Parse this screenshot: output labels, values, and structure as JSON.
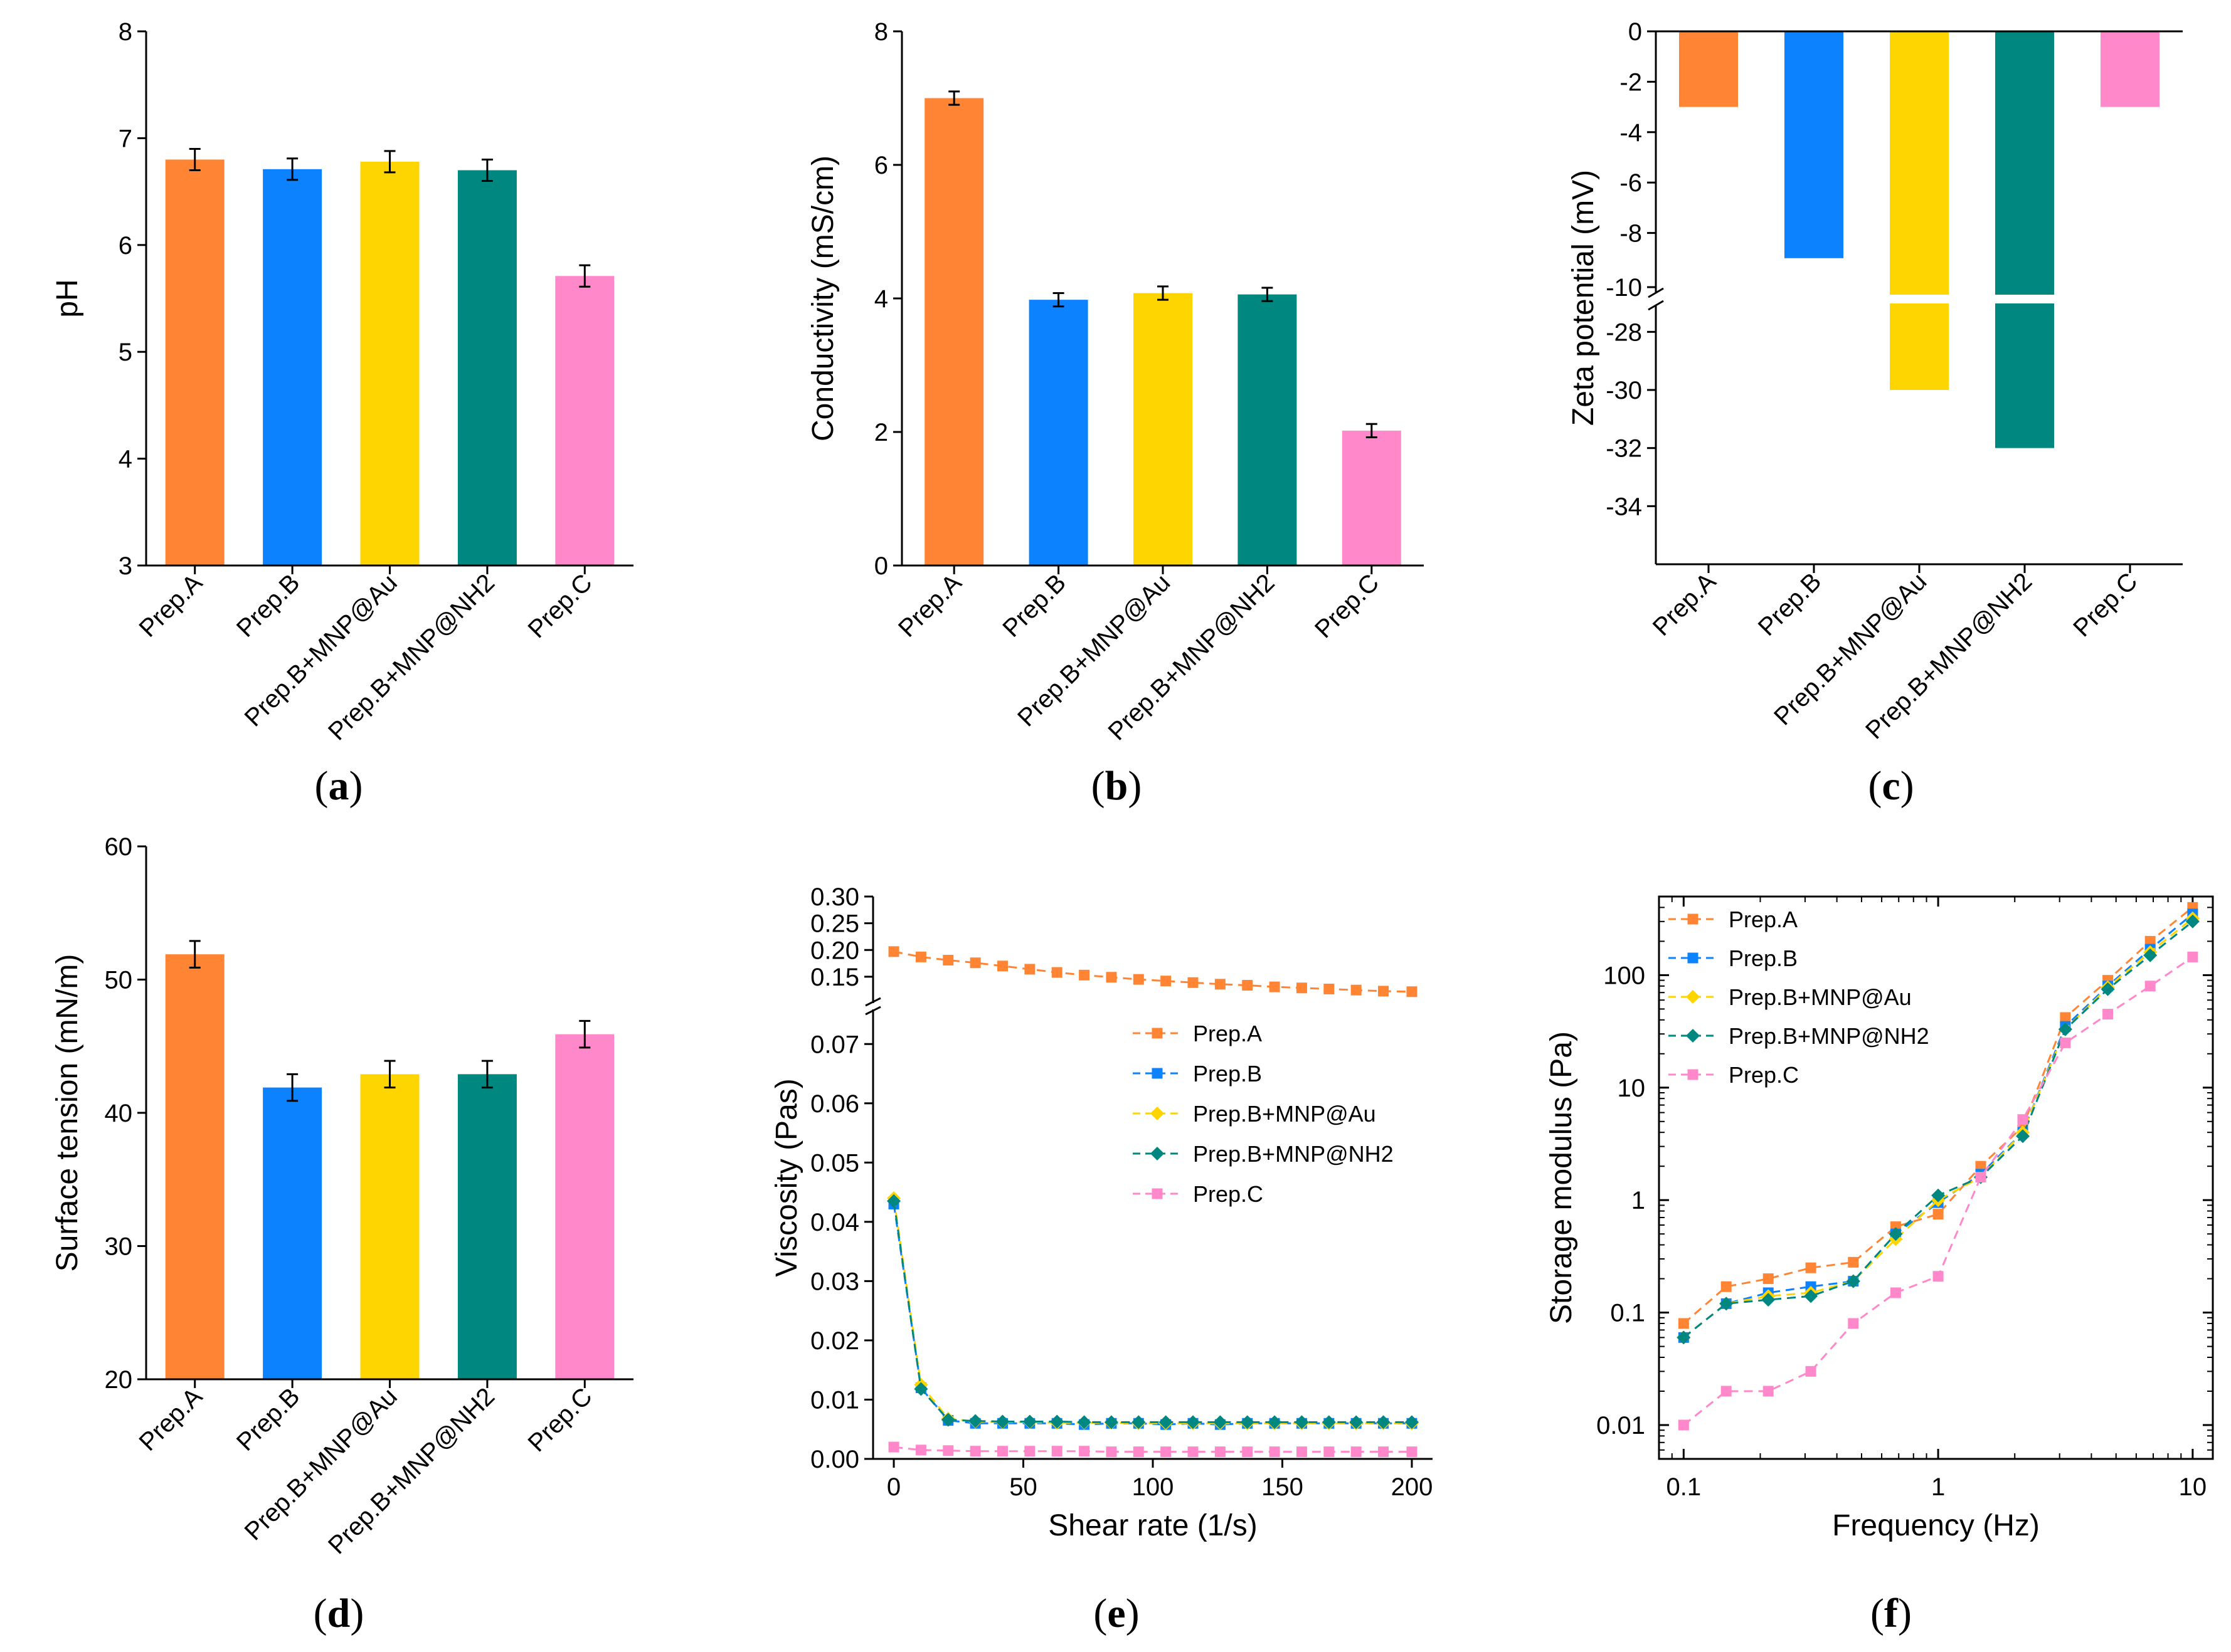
{
  "colors": {
    "prep_a": "#FF8534",
    "prep_b": "#0C82FF",
    "prep_b_au": "#FFD500",
    "prep_b_nh2": "#008780",
    "prep_c": "#FF88CB"
  },
  "panel_labels": [
    "a",
    "b",
    "c",
    "d",
    "e",
    "f"
  ],
  "chart_data": [
    {
      "id": "a",
      "type": "bar",
      "categories": [
        "Prep.A",
        "Prep.B",
        "Prep.B+MNP@Au",
        "Prep.B+MNP@NH2",
        "Prep.C"
      ],
      "values": [
        6.8,
        6.71,
        6.78,
        6.7,
        5.71
      ],
      "errors": [
        0.1,
        0.1,
        0.1,
        0.1,
        0.1
      ],
      "xlabel": "",
      "ylabel": "pH",
      "ylim": [
        3,
        8
      ],
      "yticks": [
        3,
        4,
        5,
        6,
        7,
        8
      ],
      "ytick_labels": [
        "3",
        "4",
        "5",
        "6",
        "7",
        "8"
      ]
    },
    {
      "id": "b",
      "type": "bar",
      "categories": [
        "Prep.A",
        "Prep.B",
        "Prep.B+MNP@Au",
        "Prep.B+MNP@NH2",
        "Prep.C"
      ],
      "values": [
        7.0,
        3.98,
        4.08,
        4.06,
        2.02
      ],
      "errors": [
        0.1,
        0.1,
        0.1,
        0.1,
        0.1
      ],
      "xlabel": "",
      "ylabel": "Conductivity (mS/cm)",
      "ylim": [
        0,
        8
      ],
      "yticks": [
        0,
        2,
        4,
        6,
        8
      ],
      "ytick_labels": [
        "0",
        "2",
        "4",
        "6",
        "8"
      ]
    },
    {
      "id": "c",
      "type": "bar",
      "categories": [
        "Prep.A",
        "Prep.B",
        "Prep.B+MNP@Au",
        "Prep.B+MNP@NH2",
        "Prep.C"
      ],
      "values": [
        -3,
        -9,
        -30,
        -32,
        -3
      ],
      "xlabel": "",
      "ylabel": "Zeta potential (mV)",
      "axis_break": [
        -10.2,
        -27
      ],
      "ylim": [
        -36,
        0
      ],
      "yticks": [
        0,
        -2,
        -4,
        -6,
        -8,
        -10,
        -28,
        -30,
        -32,
        -34
      ],
      "ytick_labels": [
        "0",
        "-2",
        "-4",
        "-6",
        "-8",
        "-10",
        "-28",
        "-30",
        "-32",
        "-34"
      ]
    },
    {
      "id": "d",
      "type": "bar",
      "categories": [
        "Prep.A",
        "Prep.B",
        "Prep.B+MNP@Au",
        "Prep.B+MNP@NH2",
        "Prep.C"
      ],
      "values": [
        51.9,
        41.9,
        42.9,
        42.9,
        45.9
      ],
      "errors": [
        1.0,
        1.0,
        1.0,
        1.0,
        1.0
      ],
      "xlabel": "",
      "ylabel": "Surface tension (mN/m)",
      "ylim": [
        20,
        60
      ],
      "yticks": [
        20,
        30,
        40,
        50,
        60
      ],
      "ytick_labels": [
        "20",
        "30",
        "40",
        "50",
        "60"
      ]
    },
    {
      "id": "e",
      "type": "line",
      "xlabel": "Shear rate (1/s)",
      "ylabel": "Viscosity (Pas)",
      "xlim": [
        -8,
        208
      ],
      "xticks": [
        0,
        50,
        100,
        150,
        200
      ],
      "xtick_labels": [
        "0",
        "50",
        "100",
        "150",
        "200"
      ],
      "upper_ylim": [
        0.11,
        0.3
      ],
      "upper_yticks": [
        0.15,
        0.2,
        0.25,
        0.3
      ],
      "upper_ytick_labels": [
        "0.15",
        "0.20",
        "0.25",
        "0.30"
      ],
      "lower_ylim": [
        0,
        0.075
      ],
      "lower_yticks": [
        0,
        0.01,
        0.02,
        0.03,
        0.04,
        0.05,
        0.06,
        0.07
      ],
      "lower_ytick_labels": [
        "0.00",
        "0.01",
        "0.02",
        "0.03",
        "0.04",
        "0.05",
        "0.06",
        "0.07"
      ],
      "legend_position": "upper-right",
      "x": [
        0,
        10.5,
        21,
        31.5,
        42,
        52.5,
        63,
        73.5,
        84,
        94.5,
        105,
        115.5,
        126,
        136.5,
        147,
        157.5,
        168,
        178.5,
        189,
        200
      ],
      "series": [
        {
          "name": "Prep.A",
          "marker": "square",
          "values": [
            0.197,
            0.187,
            0.181,
            0.176,
            0.17,
            0.164,
            0.158,
            0.153,
            0.149,
            0.145,
            0.142,
            0.139,
            0.136,
            0.134,
            0.131,
            0.129,
            0.127,
            0.125,
            0.123,
            0.122
          ]
        },
        {
          "name": "Prep.B",
          "marker": "square",
          "values": [
            0.043,
            0.012,
            0.0065,
            0.006,
            0.006,
            0.006,
            0.006,
            0.0058,
            0.006,
            0.006,
            0.0058,
            0.006,
            0.0058,
            0.006,
            0.006,
            0.006,
            0.006,
            0.006,
            0.006,
            0.006
          ]
        },
        {
          "name": "Prep.B+MNP@Au",
          "marker": "diamond",
          "values": [
            0.044,
            0.0125,
            0.0068,
            0.0063,
            0.0062,
            0.0062,
            0.0061,
            0.0061,
            0.0061,
            0.006,
            0.006,
            0.006,
            0.006,
            0.006,
            0.006,
            0.006,
            0.006,
            0.006,
            0.006,
            0.006
          ]
        },
        {
          "name": "Prep.B+MNP@NH2",
          "marker": "diamond",
          "values": [
            0.0435,
            0.0118,
            0.0066,
            0.0064,
            0.0063,
            0.0063,
            0.0063,
            0.0062,
            0.0062,
            0.0062,
            0.0062,
            0.0062,
            0.0062,
            0.0062,
            0.0062,
            0.0062,
            0.0062,
            0.0062,
            0.0062,
            0.0062
          ]
        },
        {
          "name": "Prep.C",
          "marker": "square",
          "values": [
            0.002,
            0.0015,
            0.0014,
            0.0013,
            0.0013,
            0.0013,
            0.0013,
            0.0013,
            0.0012,
            0.0012,
            0.0012,
            0.0012,
            0.0012,
            0.0012,
            0.0012,
            0.0012,
            0.0012,
            0.0012,
            0.0012,
            0.0012
          ]
        }
      ]
    },
    {
      "id": "f",
      "type": "line",
      "xscale": "log",
      "yscale": "log",
      "xlabel": "Frequency (Hz)",
      "ylabel": "Storage modulus (Pa)",
      "xlim": [
        0.08,
        12
      ],
      "xticks": [
        0.1,
        1,
        10
      ],
      "xtick_labels": [
        "0.1",
        "1",
        "10"
      ],
      "ylim": [
        0.005,
        500
      ],
      "yticks": [
        0.01,
        0.1,
        1,
        10,
        100
      ],
      "ytick_labels": [
        "0.01",
        "0.1",
        "1",
        "10",
        "100"
      ],
      "legend_position": "upper-left",
      "x": [
        0.1,
        0.147,
        0.215,
        0.316,
        0.464,
        0.681,
        1.0,
        1.47,
        2.15,
        3.16,
        4.64,
        6.81,
        10.0
      ],
      "series": [
        {
          "name": "Prep.A",
          "marker": "square",
          "values": [
            0.08,
            0.17,
            0.2,
            0.25,
            0.28,
            0.58,
            0.75,
            2.0,
            4.5,
            42,
            90,
            200,
            400
          ]
        },
        {
          "name": "Prep.B",
          "marker": "square",
          "values": [
            0.06,
            0.12,
            0.15,
            0.17,
            0.19,
            0.5,
            0.95,
            1.7,
            4.0,
            35,
            80,
            170,
            350
          ]
        },
        {
          "name": "Prep.B+MNP@Au",
          "marker": "diamond",
          "values": [
            0.06,
            0.12,
            0.14,
            0.15,
            0.19,
            0.45,
            1.0,
            1.6,
            4.0,
            33,
            78,
            160,
            320
          ]
        },
        {
          "name": "Prep.B+MNP@NH2",
          "marker": "diamond",
          "values": [
            0.06,
            0.12,
            0.13,
            0.14,
            0.19,
            0.5,
            1.1,
            1.6,
            3.7,
            33,
            75,
            150,
            300
          ]
        },
        {
          "name": "Prep.C",
          "marker": "square",
          "values": [
            0.01,
            0.02,
            0.02,
            0.03,
            0.08,
            0.15,
            0.21,
            1.6,
            5.2,
            25,
            45,
            80,
            145
          ]
        }
      ]
    }
  ]
}
